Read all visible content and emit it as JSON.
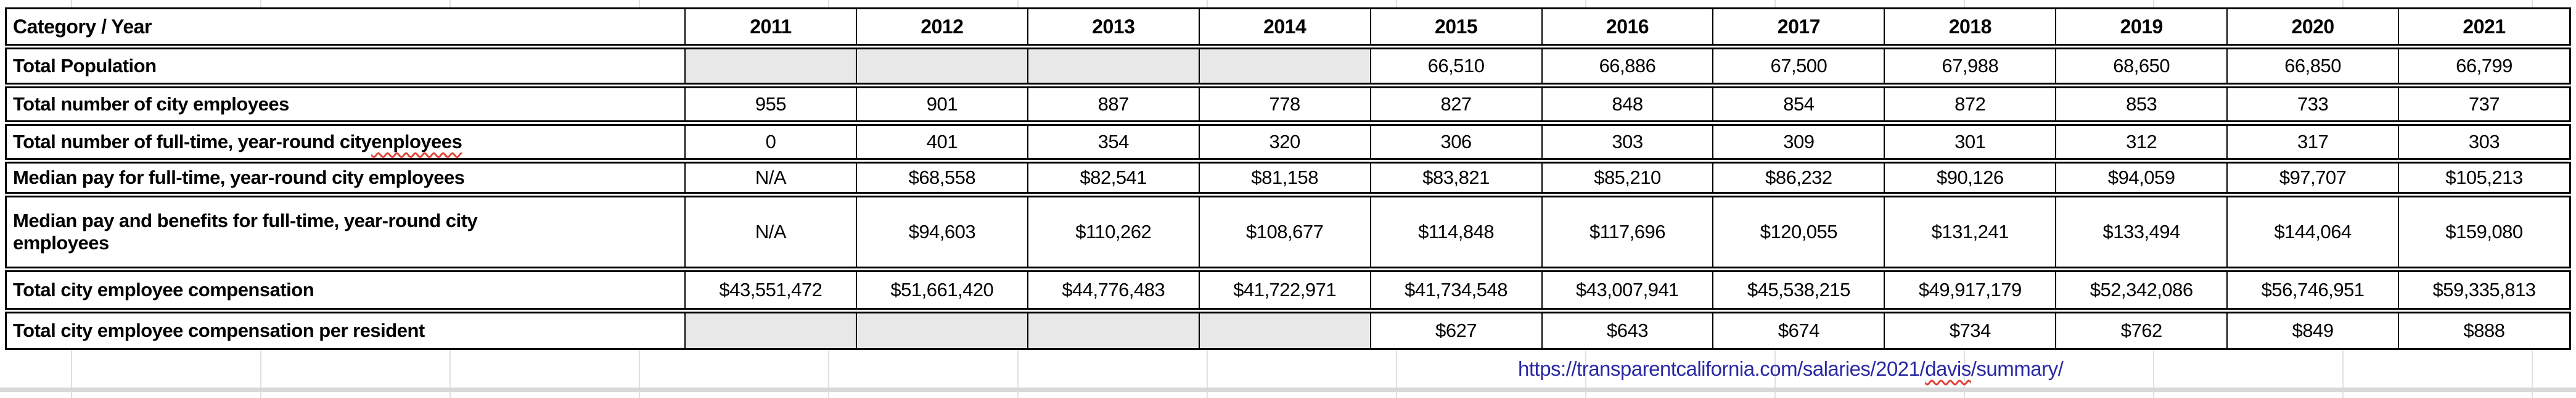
{
  "table": {
    "header": {
      "category_label": "Category / Year",
      "years": [
        "2011",
        "2012",
        "2013",
        "2014",
        "2015",
        "2016",
        "2017",
        "2018",
        "2019",
        "2020",
        "2021"
      ]
    },
    "rows": [
      {
        "label": "Total Population",
        "values": [
          "",
          "",
          "",
          "",
          "66,510",
          "66,886",
          "67,500",
          "67,988",
          "68,650",
          "66,850",
          "66,799"
        ]
      },
      {
        "label": "Total number of city employees",
        "values": [
          "955",
          "901",
          "887",
          "778",
          "827",
          "848",
          "854",
          "872",
          "853",
          "733",
          "737"
        ]
      },
      {
        "label_parts": {
          "before": "Total number of full-time, year-round city ",
          "misspelled": "enployees"
        },
        "values": [
          "0",
          "401",
          "354",
          "320",
          "306",
          "303",
          "309",
          "301",
          "312",
          "317",
          "303"
        ]
      },
      {
        "label": "Median pay for full-time, year-round city employees",
        "values": [
          "N/A",
          "$68,558",
          "$82,541",
          "$81,158",
          "$83,821",
          "$85,210",
          "$86,232",
          "$90,126",
          "$94,059",
          "$97,707",
          "$105,213"
        ]
      },
      {
        "label": "Median pay and benefits for full-time, year-round city employees",
        "values": [
          "N/A",
          "$94,603",
          "$110,262",
          "$108,677",
          "$114,848",
          "$117,696",
          "$120,055",
          "$131,241",
          "$133,494",
          "$144,064",
          "$159,080"
        ]
      },
      {
        "label": "Total city employee compensation",
        "values": [
          "$43,551,472",
          "$51,661,420",
          "$44,776,483",
          "$41,722,971",
          "$41,734,548",
          "$43,007,941",
          "$45,538,215",
          "$49,917,179",
          "$52,342,086",
          "$56,746,951",
          "$59,335,813"
        ]
      },
      {
        "label": "Total city employee compensation per resident",
        "values": [
          "",
          "",
          "",
          "",
          "$627",
          "$643",
          "$674",
          "$734",
          "$762",
          "$849",
          "$888"
        ]
      }
    ]
  },
  "source_link": {
    "before": "https://transparentcalifornia.com/salaries/2021/",
    "misspelled": "davis",
    "after": "/summary/"
  },
  "colors": {
    "link": "#2929A3",
    "blank_cell_fill": "#E9E8E8",
    "squiggle": "#E04438",
    "gridline": "#E0E0E0"
  }
}
